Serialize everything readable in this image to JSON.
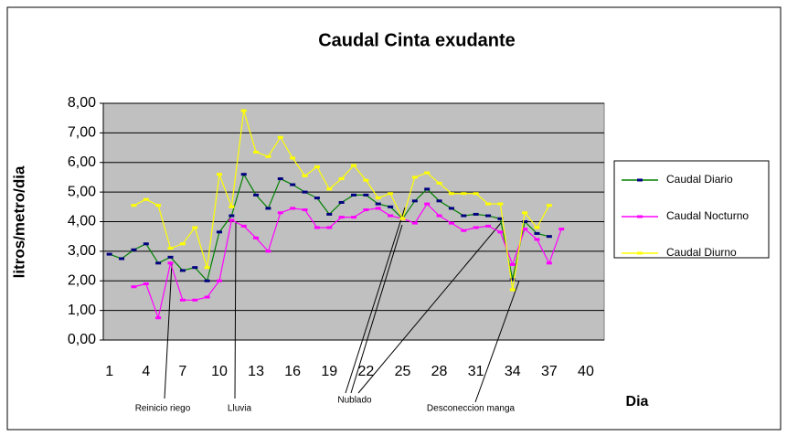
{
  "chart_data": {
    "type": "line",
    "title": "Caudal Cinta exudante",
    "y_label": "litros/metro/dia",
    "x_label": "Dia",
    "categories": [
      "1",
      null,
      null,
      "4",
      null,
      null,
      "7",
      null,
      null,
      "10",
      null,
      null,
      "13",
      null,
      null,
      "16",
      null,
      null,
      "19",
      null,
      null,
      "22",
      null,
      null,
      "25",
      null,
      null,
      "28",
      null,
      null,
      "31",
      null,
      null,
      "34",
      null,
      null,
      "37",
      null,
      null,
      "40",
      null
    ],
    "series": [
      {
        "name": "Caudal Diario",
        "color": "#008000",
        "marker_color": "#000080",
        "values": [
          2.9,
          2.75,
          3.05,
          3.25,
          2.6,
          2.8,
          2.35,
          2.45,
          2.0,
          3.65,
          4.2,
          5.6,
          4.9,
          4.45,
          5.45,
          5.25,
          5.0,
          4.8,
          4.25,
          4.65,
          4.9,
          4.9,
          4.6,
          4.5,
          4.1,
          4.7,
          5.1,
          4.7,
          4.45,
          4.2,
          4.25,
          4.2,
          4.1,
          2.05,
          4.0,
          3.6,
          3.5,
          null,
          null,
          null,
          null
        ]
      },
      {
        "name": "Caudal Nocturno",
        "color": "#ff00ff",
        "marker_color": "#ff00ff",
        "values": [
          null,
          null,
          1.8,
          1.9,
          0.75,
          2.6,
          1.35,
          1.35,
          1.45,
          2.0,
          4.05,
          3.85,
          3.45,
          3.0,
          4.3,
          4.45,
          4.4,
          3.8,
          3.8,
          4.15,
          4.15,
          4.4,
          4.45,
          4.2,
          4.1,
          3.95,
          4.6,
          4.2,
          3.95,
          3.7,
          3.8,
          3.85,
          3.65,
          2.55,
          3.75,
          3.4,
          2.6,
          3.75,
          null,
          null,
          null
        ]
      },
      {
        "name": "Caudal Diurno",
        "color": "#ffff00",
        "marker_color": "#ffff00",
        "values": [
          null,
          null,
          4.55,
          4.75,
          4.55,
          3.1,
          3.25,
          3.8,
          2.45,
          5.6,
          4.5,
          7.75,
          6.35,
          6.2,
          6.85,
          6.15,
          5.55,
          5.85,
          5.1,
          5.45,
          5.9,
          5.4,
          4.8,
          4.95,
          4.1,
          5.5,
          5.65,
          5.3,
          4.95,
          4.95,
          4.95,
          4.6,
          4.6,
          1.7,
          4.3,
          3.8,
          4.55,
          null,
          null,
          null,
          null
        ]
      }
    ],
    "ylim": [
      0,
      8
    ],
    "yticks": [
      {
        "value": 0,
        "label": "0,00"
      },
      {
        "value": 1,
        "label": "1,00"
      },
      {
        "value": 2,
        "label": "2,00"
      },
      {
        "value": 3,
        "label": "3,00"
      },
      {
        "value": 4,
        "label": "4,00"
      },
      {
        "value": 5,
        "label": "5,00"
      },
      {
        "value": 6,
        "label": "6,00"
      },
      {
        "value": 7,
        "label": "7,00"
      },
      {
        "value": 8,
        "label": "8,00"
      }
    ],
    "grid": true,
    "legend": "right",
    "annotations": [
      "Reinicio riego",
      "Lluvia",
      "Nublado",
      "Desconeccion manga"
    ]
  }
}
